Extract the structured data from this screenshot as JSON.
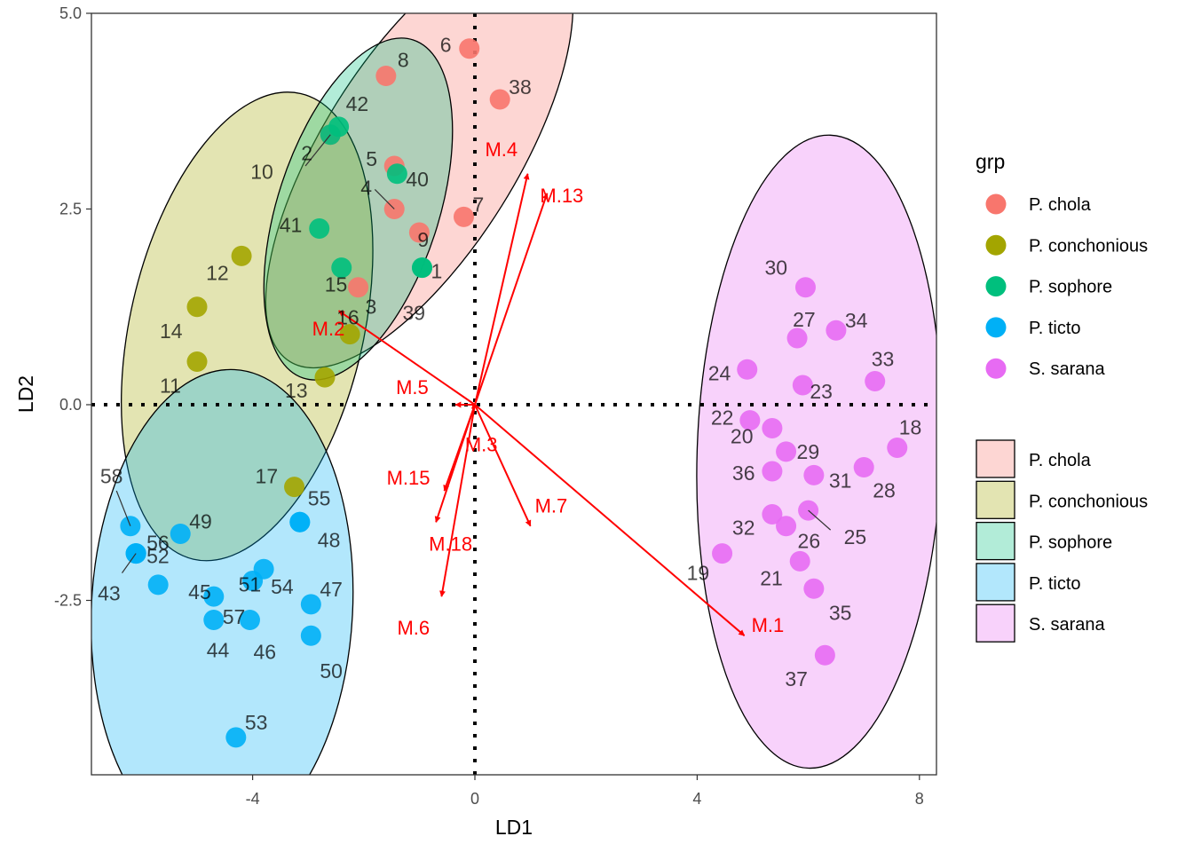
{
  "chart_data": {
    "type": "scatter",
    "title": "",
    "xlabel": "LD1",
    "ylabel": "LD2",
    "xlim": [
      -6.9,
      8.3
    ],
    "ylim": [
      -4.7,
      5.0
    ],
    "x_ticks": [
      -4,
      0,
      4,
      8
    ],
    "x_tick_labels": [
      "-4",
      "0",
      "4",
      "8"
    ],
    "y_ticks": [
      -2.5,
      0.0,
      2.5,
      5.0
    ],
    "y_tick_labels": [
      "-2.5",
      "0.0",
      "2.5",
      "5.0"
    ],
    "grid": false,
    "reference_lines": {
      "x": 0,
      "y": 0,
      "style": "dotted"
    },
    "legend_placement": "right",
    "legend_point_title": "grp",
    "groups": [
      {
        "name": "P. chola",
        "color": "#F8766D"
      },
      {
        "name": "P. conchonious",
        "color": "#A3A500"
      },
      {
        "name": "P. sophore",
        "color": "#00BF7D"
      },
      {
        "name": "P. ticto",
        "color": "#00B0F6"
      },
      {
        "name": "S. sarana",
        "color": "#E76BF3"
      }
    ],
    "ellipses": [
      {
        "group": "P. chola",
        "cx": -1.0,
        "cy": 3.2,
        "rx": 1.75,
        "ry": 4.4,
        "angle_deg": 32
      },
      {
        "group": "P. conchonious",
        "cx": -4.1,
        "cy": 1.0,
        "rx": 2.1,
        "ry": 4.3,
        "angle_deg": 13
      },
      {
        "group": "P. sophore",
        "cx": -2.1,
        "cy": 2.5,
        "rx": 1.45,
        "ry": 3.2,
        "angle_deg": 18
      },
      {
        "group": "P. ticto",
        "cx": -4.55,
        "cy": -2.6,
        "rx": 2.35,
        "ry": 4.3,
        "angle_deg": 3
      },
      {
        "group": "S. sarana",
        "cx": 6.2,
        "cy": -0.6,
        "rx": 2.2,
        "ry": 5.7,
        "angle_deg": 2
      }
    ],
    "points": [
      {
        "id": "8",
        "group": "P. chola",
        "x": -1.6,
        "y": 4.2
      },
      {
        "id": "6",
        "group": "P. chola",
        "x": -0.1,
        "y": 4.55
      },
      {
        "id": "38",
        "group": "P. chola",
        "x": 0.45,
        "y": 3.9
      },
      {
        "id": "2",
        "group": "P. chola",
        "x": -2.6,
        "y": 3.45
      },
      {
        "id": "5",
        "group": "P. chola",
        "x": -1.45,
        "y": 3.05
      },
      {
        "id": "4",
        "group": "P. chola",
        "x": -1.45,
        "y": 2.5
      },
      {
        "id": "9",
        "group": "P. chola",
        "x": -1.0,
        "y": 2.2
      },
      {
        "id": "7",
        "group": "P. chola",
        "x": -0.2,
        "y": 2.4
      },
      {
        "id": "3",
        "group": "P. chola",
        "x": -2.1,
        "y": 1.5
      },
      {
        "id": "42",
        "group": "P. sophore",
        "x": -2.45,
        "y": 3.55
      },
      {
        "id": "40",
        "group": "P. sophore",
        "x": -1.4,
        "y": 2.95
      },
      {
        "id": "10",
        "group": "P. sophore",
        "x": -2.6,
        "y": 3.45
      },
      {
        "id": "41",
        "group": "P. sophore",
        "x": -2.8,
        "y": 2.25
      },
      {
        "id": "15",
        "group": "P. sophore",
        "x": -2.4,
        "y": 1.75
      },
      {
        "id": "1",
        "group": "P. sophore",
        "x": -0.95,
        "y": 1.75
      },
      {
        "id": "39",
        "group": "P. sophore",
        "x": -0.95,
        "y": 1.75
      },
      {
        "id": "12",
        "group": "P. conchonious",
        "x": -4.2,
        "y": 1.9
      },
      {
        "id": "14",
        "group": "P. conchonious",
        "x": -5.0,
        "y": 1.25
      },
      {
        "id": "11",
        "group": "P. conchonious",
        "x": -5.0,
        "y": 0.55
      },
      {
        "id": "16",
        "group": "P. conchonious",
        "x": -2.25,
        "y": 0.9
      },
      {
        "id": "13",
        "group": "P. conchonious",
        "x": -2.7,
        "y": 0.35
      },
      {
        "id": "17",
        "group": "P. conchonious",
        "x": -3.25,
        "y": -1.05
      },
      {
        "id": "58",
        "group": "P. ticto",
        "x": -6.2,
        "y": -1.55
      },
      {
        "id": "56",
        "group": "P. ticto",
        "x": -6.1,
        "y": -1.9
      },
      {
        "id": "49",
        "group": "P. ticto",
        "x": -5.3,
        "y": -1.65
      },
      {
        "id": "52",
        "group": "P. ticto",
        "x": -6.1,
        "y": -1.9
      },
      {
        "id": "43",
        "group": "P. ticto",
        "x": -6.1,
        "y": -1.9
      },
      {
        "id": "45",
        "group": "P. ticto",
        "x": -5.7,
        "y": -2.3
      },
      {
        "id": "57",
        "group": "P. ticto",
        "x": -4.7,
        "y": -2.45
      },
      {
        "id": "51",
        "group": "P. ticto",
        "x": -4.0,
        "y": -2.25
      },
      {
        "id": "44",
        "group": "P. ticto",
        "x": -4.7,
        "y": -2.75
      },
      {
        "id": "46",
        "group": "P. ticto",
        "x": -4.05,
        "y": -2.75
      },
      {
        "id": "54",
        "group": "P. ticto",
        "x": -3.8,
        "y": -2.1
      },
      {
        "id": "55",
        "group": "P. ticto",
        "x": -3.15,
        "y": -1.5
      },
      {
        "id": "48",
        "group": "P. ticto",
        "x": -3.15,
        "y": -1.5
      },
      {
        "id": "47",
        "group": "P. ticto",
        "x": -2.95,
        "y": -2.55
      },
      {
        "id": "50",
        "group": "P. ticto",
        "x": -2.95,
        "y": -2.95
      },
      {
        "id": "53",
        "group": "P. ticto",
        "x": -4.3,
        "y": -4.25
      },
      {
        "id": "30",
        "group": "S. sarana",
        "x": 5.95,
        "y": 1.5
      },
      {
        "id": "27",
        "group": "S. sarana",
        "x": 5.8,
        "y": 0.85
      },
      {
        "id": "34",
        "group": "S. sarana",
        "x": 6.5,
        "y": 0.95
      },
      {
        "id": "24",
        "group": "S. sarana",
        "x": 4.9,
        "y": 0.45
      },
      {
        "id": "33",
        "group": "S. sarana",
        "x": 7.2,
        "y": 0.3
      },
      {
        "id": "23",
        "group": "S. sarana",
        "x": 5.9,
        "y": 0.25
      },
      {
        "id": "22",
        "group": "S. sarana",
        "x": 4.95,
        "y": -0.2
      },
      {
        "id": "18",
        "group": "S. sarana",
        "x": 7.6,
        "y": -0.55
      },
      {
        "id": "20",
        "group": "S. sarana",
        "x": 5.35,
        "y": -0.3
      },
      {
        "id": "29",
        "group": "S. sarana",
        "x": 5.6,
        "y": -0.6
      },
      {
        "id": "28",
        "group": "S. sarana",
        "x": 7.0,
        "y": -0.8
      },
      {
        "id": "36",
        "group": "S. sarana",
        "x": 5.35,
        "y": -0.85
      },
      {
        "id": "31",
        "group": "S. sarana",
        "x": 6.1,
        "y": -0.9
      },
      {
        "id": "25",
        "group": "S. sarana",
        "x": 6.0,
        "y": -1.35
      },
      {
        "id": "32",
        "group": "S. sarana",
        "x": 5.35,
        "y": -1.4
      },
      {
        "id": "26",
        "group": "S. sarana",
        "x": 5.6,
        "y": -1.55
      },
      {
        "id": "19",
        "group": "S. sarana",
        "x": 4.45,
        "y": -1.9
      },
      {
        "id": "21",
        "group": "S. sarana",
        "x": 5.85,
        "y": -2.0
      },
      {
        "id": "35",
        "group": "S. sarana",
        "x": 6.1,
        "y": -2.35
      },
      {
        "id": "37",
        "group": "S. sarana",
        "x": 6.3,
        "y": -3.2
      }
    ],
    "loadings": [
      {
        "name": "M.1",
        "x": 4.85,
        "y": -2.95
      },
      {
        "name": "M.2",
        "x": -2.45,
        "y": 1.2
      },
      {
        "name": "M.3",
        "x": -0.05,
        "y": -0.05
      },
      {
        "name": "M.4",
        "x": 0.95,
        "y": 2.95
      },
      {
        "name": "M.5",
        "x": -0.35,
        "y": 0.0
      },
      {
        "name": "M.6",
        "x": -0.6,
        "y": -2.45
      },
      {
        "name": "M.7",
        "x": 1.0,
        "y": -1.55
      },
      {
        "name": "M.13",
        "x": 1.3,
        "y": 2.7
      },
      {
        "name": "M.15",
        "x": -0.55,
        "y": -1.1
      },
      {
        "name": "M.18",
        "x": -0.7,
        "y": -1.5
      }
    ]
  }
}
